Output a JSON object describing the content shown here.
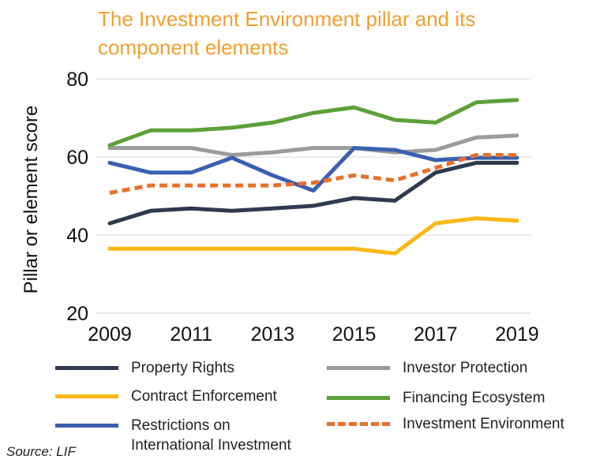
{
  "title_lines": [
    "The Investment Environment pillar and its",
    "component elements"
  ],
  "source": "Source: LIF",
  "colors": {
    "title": "#f0a030",
    "property_rights": "#2e3a4f",
    "investor_protection": "#9b9b9b",
    "contract_enforcement": "#f9b816",
    "financing_ecosystem": "#5ca03a",
    "restrictions": "#3a5fb0",
    "investment_environment": "#e8702a"
  },
  "legend": [
    {
      "label_lines": [
        "Property Rights"
      ],
      "color": "#2e3a4f",
      "style": "solid"
    },
    {
      "label_lines": [
        "Investor Protection"
      ],
      "color": "#9b9b9b",
      "style": "solid"
    },
    {
      "label_lines": [
        "Contract Enforcement"
      ],
      "color": "#f9b816",
      "style": "solid"
    },
    {
      "label_lines": [
        "Financing Ecosystem"
      ],
      "color": "#5ca03a",
      "style": "solid"
    },
    {
      "label_lines": [
        "Restrictions on",
        "International Investment"
      ],
      "color": "#3a5fb0",
      "style": "solid"
    },
    {
      "label_lines": [
        "Investment Environment"
      ],
      "color": "#e8702a",
      "style": "dashed"
    }
  ],
  "chart_data": {
    "type": "line",
    "title": "The Investment Environment pillar and its component elements",
    "xlabel": "",
    "ylabel": "Pillar or element score",
    "x": [
      2009,
      2010,
      2011,
      2012,
      2013,
      2014,
      2015,
      2016,
      2017,
      2018,
      2019
    ],
    "xticks": [
      "2009",
      "2011",
      "2013",
      "2015",
      "2017",
      "2019"
    ],
    "yticks": [
      "20",
      "40",
      "60",
      "80"
    ],
    "ylim": [
      20,
      80
    ],
    "grid": "horizontal",
    "legend_position": "bottom",
    "series": [
      {
        "name": "Property Rights",
        "color": "#2e3a4f",
        "style": "solid",
        "values": [
          43,
          46.2,
          46.8,
          46.2,
          46.8,
          47.5,
          49.5,
          48.8,
          56,
          58.5,
          58.5
        ]
      },
      {
        "name": "Investor Protection",
        "color": "#9b9b9b",
        "style": "solid",
        "values": [
          62.3,
          62.3,
          62.3,
          60.5,
          61.2,
          62.3,
          62.3,
          61.2,
          61.8,
          65,
          65.5
        ]
      },
      {
        "name": "Contract Enforcement",
        "color": "#f9b816",
        "style": "solid",
        "values": [
          36.5,
          36.5,
          36.5,
          36.5,
          36.5,
          36.5,
          36.5,
          35.3,
          43,
          44.3,
          43.7
        ]
      },
      {
        "name": "Financing Ecosystem",
        "color": "#5ca03a",
        "style": "solid",
        "values": [
          63,
          66.8,
          66.8,
          67.5,
          68.8,
          71.3,
          72.7,
          69.5,
          68.8,
          74,
          74.6
        ]
      },
      {
        "name": "Restrictions on International Investment",
        "color": "#3a5fb0",
        "style": "solid",
        "values": [
          58.5,
          56,
          56,
          59.8,
          55.3,
          51.4,
          62.3,
          61.8,
          59.2,
          59.8,
          59.8
        ]
      },
      {
        "name": "Investment Environment",
        "color": "#e8702a",
        "style": "dashed",
        "values": [
          50.8,
          52.7,
          52.7,
          52.7,
          52.7,
          53.4,
          55.3,
          54,
          57.2,
          60.5,
          60.5
        ]
      }
    ]
  }
}
